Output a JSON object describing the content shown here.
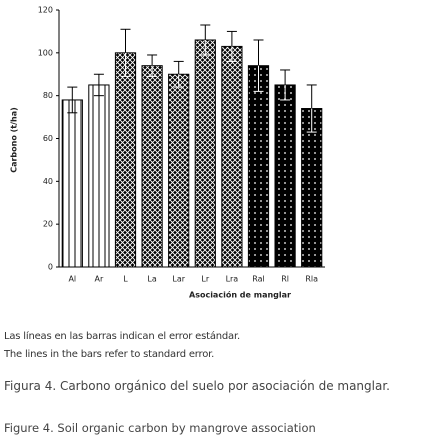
{
  "chart_data": {
    "type": "bar",
    "y_label": "Carbono (t/ha)",
    "x_label": "Asociación de manglar",
    "categories": [
      "Al",
      "Ar",
      "L",
      "La",
      "Lar",
      "Lr",
      "Lra",
      "Ral",
      "Rl",
      "Rla"
    ],
    "values": [
      78,
      85,
      100,
      94,
      90,
      106,
      103,
      94,
      85,
      74
    ],
    "errors": [
      6,
      5,
      11,
      5,
      6,
      7,
      7,
      12,
      7,
      11
    ],
    "patterns": [
      "lines",
      "lines",
      "cross",
      "cross",
      "cross",
      "cross",
      "cross",
      "dots",
      "dots",
      "dots"
    ],
    "color": "#000000",
    "ylim": [
      0,
      120
    ],
    "yticks": [
      0,
      20,
      40,
      60,
      80,
      100,
      120
    ]
  },
  "notes": [
    "Las líneas en las barras indican el error estándar.",
    "The lines in the bars refer to standard error."
  ],
  "captions": [
    "Figura 4. Carbono orgánico del suelo por asociación de manglar.",
    "Figure 4. Soil organic carbon by mangrove association"
  ]
}
